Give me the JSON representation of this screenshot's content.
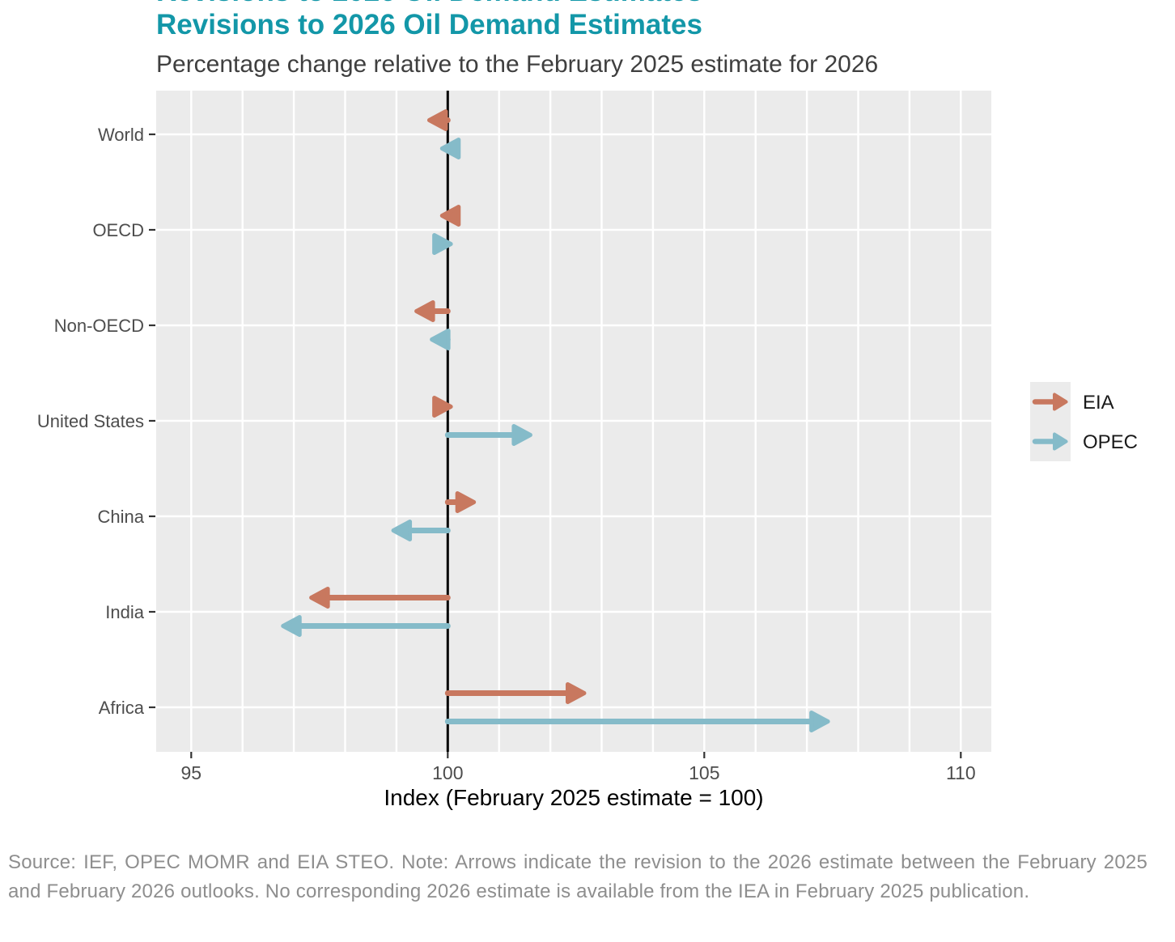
{
  "page": {
    "title": "Revisions to 2026 Oil Demand Estimates",
    "subtitle": "Percentage change relative to the February 2025 estimate for 2026",
    "footer": "Source: IEF, OPEC MOMR and EIA STEO. Note: Arrows indicate the revision to the 2026 estimate between the February 2025 and February 2026 outlooks. No corresponding 2026 estimate is available from the IEA in February 2025 publication.",
    "colors": {
      "title_teal": "#1397A8",
      "subtitle_gray": "#3F3F3F",
      "footer_gray": "#8E8E8E",
      "panel_gray": "#EBEBEB",
      "gridline_white": "#FFFFFF",
      "baseline_black": "#000000",
      "axis_text": "#4D4D4D",
      "legend_text": "#1A1A1A"
    }
  },
  "chart_data": {
    "type": "arrow",
    "title": "Revisions to 2026 Oil Demand Estimates",
    "subtitle": "Percentage change relative to the February 2025 estimate for 2026",
    "xlabel": "Index (February 2025 estimate = 100)",
    "x_ticks": [
      95,
      100,
      105,
      110
    ],
    "x_tick_labels": [
      "95",
      "100",
      "105",
      "110"
    ],
    "xlim": [
      94.3,
      110.6
    ],
    "baseline": 100,
    "grid": true,
    "gridline_step": 1,
    "legend_position": "right",
    "categories": [
      "World",
      "OECD",
      "Non-OECD",
      "United States",
      "China",
      "India",
      "Africa"
    ],
    "series": [
      {
        "name": "EIA",
        "color": "#C8785F",
        "start": 100,
        "values": [
          99.6,
          99.85,
          99.35,
          100.1,
          100.55,
          97.3,
          102.7
        ]
      },
      {
        "name": "OPEC",
        "color": "#85BBC9",
        "start": 100,
        "values": [
          99.85,
          100.1,
          99.65,
          101.65,
          98.9,
          96.75,
          107.45
        ]
      }
    ]
  }
}
